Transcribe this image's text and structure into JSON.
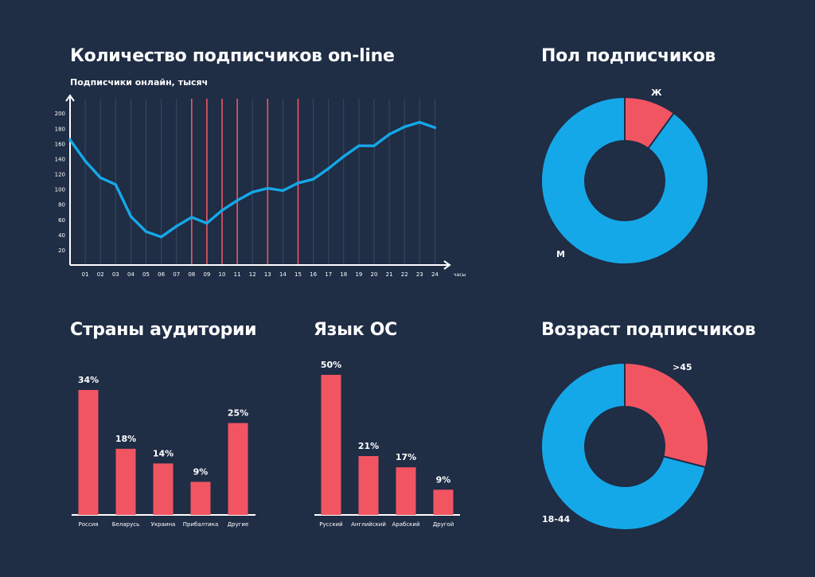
{
  "colors": {
    "background": "#1f2d45",
    "blue": "#15a8e8",
    "red": "#f25562",
    "axis": "#ffffff",
    "grid": "#3a4863"
  },
  "headings": {
    "online": "Количество подписчиков on-line",
    "online_sub": "Подписчики онлайн, тысяч",
    "gender": "Пол подписчиков",
    "countries": "Страны аудитории",
    "os": "Язык ОС",
    "age": "Возраст подписчиков"
  },
  "chart_data": [
    {
      "id": "online",
      "type": "line",
      "title": "Количество подписчиков on-line",
      "subtitle": "Подписчики онлайн, тысяч",
      "xlabel": "часы",
      "ylabel": "",
      "ylim": [
        0,
        220
      ],
      "yticks": [
        20,
        40,
        60,
        80,
        100,
        120,
        140,
        160,
        180,
        200
      ],
      "categories": [
        "01",
        "02",
        "03",
        "04",
        "05",
        "06",
        "07",
        "08",
        "09",
        "10",
        "11",
        "12",
        "13",
        "14",
        "15",
        "16",
        "17",
        "18",
        "19",
        "20",
        "21",
        "22",
        "23",
        "24"
      ],
      "x": [
        0,
        1,
        2,
        3,
        4,
        5,
        6,
        7,
        8,
        9,
        10,
        11,
        12,
        13,
        14,
        15,
        16,
        17,
        18,
        19,
        20,
        21,
        22,
        23,
        24
      ],
      "values": [
        165,
        137,
        115,
        106,
        64,
        44,
        37,
        51,
        63,
        55,
        72,
        85,
        96,
        101,
        98,
        108,
        113,
        127,
        143,
        157,
        157,
        172,
        182,
        188,
        181
      ],
      "highlighted_hours": [
        "08",
        "09",
        "10",
        "11",
        "13",
        "15"
      ],
      "grid": true
    },
    {
      "id": "gender",
      "type": "pie",
      "title": "Пол подписчиков",
      "labels": [
        "Ж",
        "М"
      ],
      "values": [
        10,
        90
      ]
    },
    {
      "id": "countries",
      "type": "bar",
      "title": "Страны аудитории",
      "categories": [
        "Россия",
        "Беларусь",
        "Украина",
        "Прибалтика",
        "Другие"
      ],
      "values": [
        34,
        18,
        14,
        9,
        25
      ],
      "data_labels": [
        "34%",
        "18%",
        "14%",
        "9%",
        "25%"
      ],
      "ylim": [
        0,
        34
      ]
    },
    {
      "id": "os",
      "type": "bar",
      "title": "Язык ОС",
      "categories": [
        "Русский",
        "Английский",
        "Арабский",
        "Другой"
      ],
      "values": [
        50,
        21,
        17,
        9
      ],
      "data_labels": [
        "50%",
        "21%",
        "17%",
        "9%"
      ],
      "ylim": [
        0,
        50
      ]
    },
    {
      "id": "age",
      "type": "pie",
      "title": "Возраст подписчиков",
      "labels": [
        ">45",
        "18-44"
      ],
      "values": [
        29,
        71
      ]
    }
  ]
}
